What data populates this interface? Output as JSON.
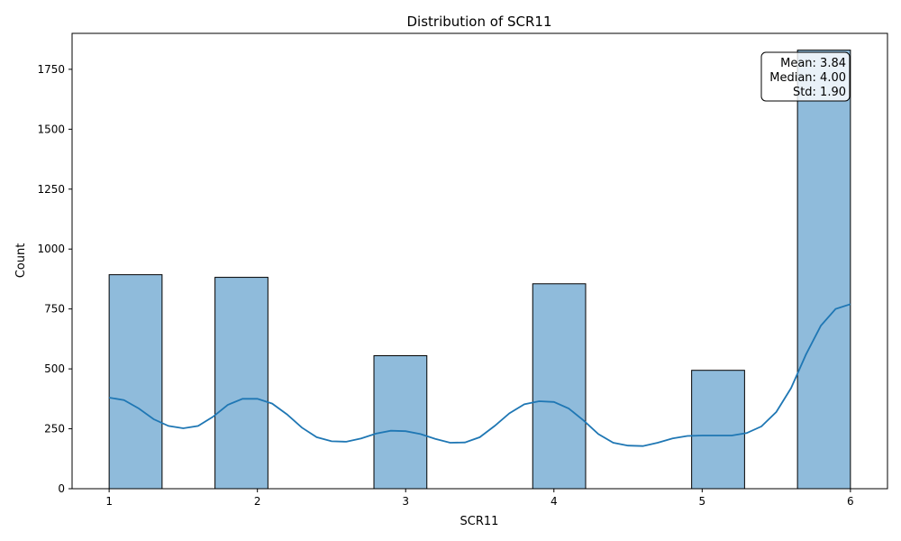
{
  "chart_data": {
    "type": "bar",
    "title": "Distribution of SCR11",
    "xlabel": "SCR11",
    "ylabel": "Count",
    "xlim": [
      0.75,
      6.25
    ],
    "ylim": [
      0,
      1900
    ],
    "xticks": [
      1,
      2,
      3,
      4,
      5,
      6
    ],
    "yticks": [
      0,
      250,
      500,
      750,
      1000,
      1250,
      1500,
      1750
    ],
    "bars": [
      {
        "x0": 1.0,
        "x1": 1.357,
        "value": 893
      },
      {
        "x0": 1.714,
        "x1": 2.071,
        "value": 882
      },
      {
        "x0": 2.786,
        "x1": 3.143,
        "value": 555
      },
      {
        "x0": 3.857,
        "x1": 4.214,
        "value": 855
      },
      {
        "x0": 4.929,
        "x1": 5.286,
        "value": 494
      },
      {
        "x0": 5.643,
        "x1": 6.0,
        "value": 1830
      }
    ],
    "kde": {
      "x": [
        1.0,
        1.1,
        1.2,
        1.3,
        1.4,
        1.5,
        1.6,
        1.7,
        1.8,
        1.9,
        2.0,
        2.1,
        2.2,
        2.3,
        2.4,
        2.5,
        2.6,
        2.7,
        2.8,
        2.9,
        3.0,
        3.1,
        3.2,
        3.3,
        3.4,
        3.5,
        3.6,
        3.7,
        3.8,
        3.9,
        4.0,
        4.1,
        4.2,
        4.3,
        4.4,
        4.5,
        4.6,
        4.7,
        4.8,
        4.9,
        5.0,
        5.1,
        5.2,
        5.3,
        5.4,
        5.5,
        5.6,
        5.7,
        5.8,
        5.9,
        6.0
      ],
      "y": [
        380,
        370,
        335,
        290,
        262,
        252,
        262,
        300,
        350,
        375,
        375,
        355,
        310,
        255,
        215,
        198,
        196,
        210,
        230,
        242,
        240,
        228,
        208,
        192,
        193,
        215,
        262,
        315,
        352,
        365,
        362,
        335,
        285,
        228,
        192,
        180,
        178,
        192,
        210,
        220,
        222,
        222,
        222,
        232,
        260,
        320,
        420,
        560,
        680,
        750,
        770
      ]
    },
    "stats": {
      "mean": "Mean: 3.84",
      "median": "Median: 4.00",
      "std": "Std: 1.90"
    },
    "colors": {
      "bar_fill": "#8fbbdb",
      "bar_edge": "#000000",
      "kde": "#1f77b4"
    }
  }
}
